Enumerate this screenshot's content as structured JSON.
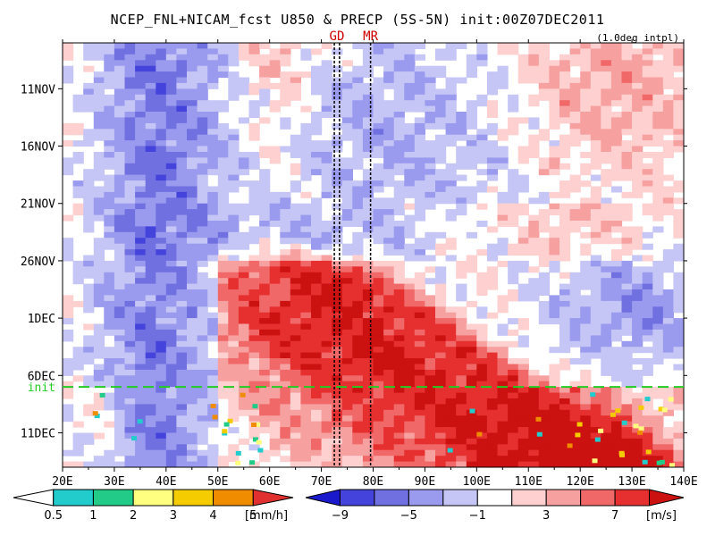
{
  "chart_data": {
    "type": "heatmap",
    "title": "NCEP_FNL+NICAM_fcst U850 & PRECP (5S-5N) init:00Z07DEC2011",
    "subtitle": "(1.0deg intpl)",
    "x_ticks": [
      "20E",
      "30E",
      "40E",
      "50E",
      "60E",
      "70E",
      "80E",
      "90E",
      "100E",
      "110E",
      "120E",
      "130E",
      "140E"
    ],
    "y_ticks": [
      "11NOV",
      "16NOV",
      "21NOV",
      "26NOV",
      "1DEC",
      "6DEC",
      "11DEC"
    ],
    "xlim": [
      20,
      140
    ],
    "ylim": [
      "07NOV2011",
      "14DEC2011"
    ],
    "vlines": [
      {
        "label": "GD",
        "lons": [
          72.5,
          73.5
        ],
        "color": "#cc0000"
      },
      {
        "label": "MR",
        "lons": [
          79.5
        ],
        "color": "#cc0000"
      }
    ],
    "init_line": {
      "label": "init",
      "color": "#22cc22"
    },
    "u850_levels": [
      -9,
      -7,
      -5,
      -3,
      -1,
      1,
      3,
      5,
      7,
      9
    ],
    "u850_colors": [
      "#1a1acc",
      "#4444dd",
      "#7070e0",
      "#9a9aee",
      "#c6c6f6",
      "#ffffff",
      "#ffd0d0",
      "#f7a0a0",
      "#f06868",
      "#e63030",
      "#cc1111"
    ],
    "precip_levels": [
      0.5,
      1,
      2,
      3,
      4,
      5
    ],
    "precip_colors": [
      "#ffffff",
      "#22cccc",
      "#22cc88",
      "#ffff80",
      "#f4cc00",
      "#f08c00",
      "#e03030"
    ],
    "precip_unit": "[mm/h]",
    "u850_unit": "[m/s]"
  }
}
